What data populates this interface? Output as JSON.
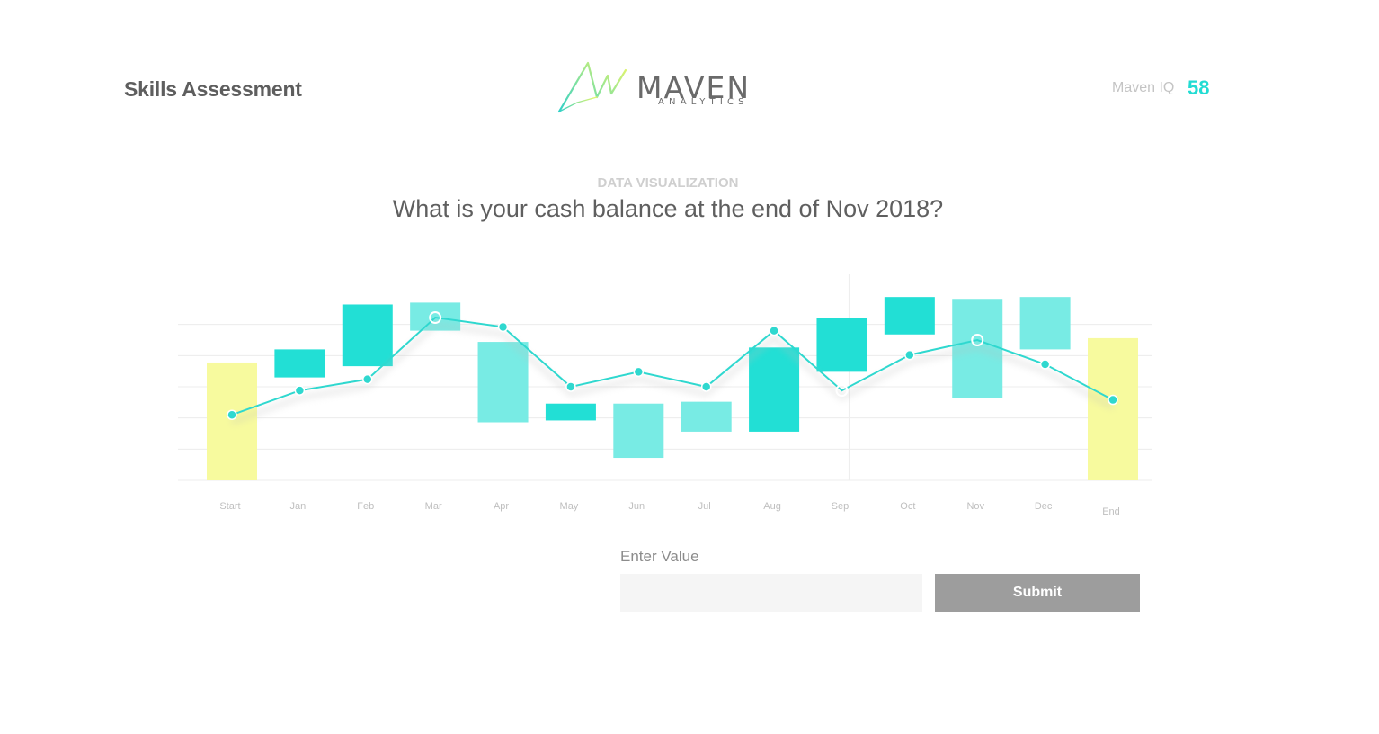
{
  "header": {
    "app_title": "Skills Assessment",
    "logo": {
      "word": "MAVEN",
      "sub": "ANALYTICS"
    },
    "iq_label": "Maven IQ",
    "iq_score": "58"
  },
  "question": {
    "category": "DATA VISUALIZATION",
    "text": "What is your cash balance at the end of Nov 2018?"
  },
  "answer": {
    "label": "Enter Value",
    "input_value": "",
    "input_placeholder": "",
    "submit_label": "Submit"
  },
  "colors": {
    "accent": "#22dcd3",
    "bar_dark": "#22dfd5",
    "bar_light": "#78ebe4",
    "total_bar": "#f7fa9e",
    "line": "#2fd8cf",
    "submit_bg": "#9d9d9d"
  },
  "chart_data": {
    "type": "bar",
    "subtype": "waterfall-with-line",
    "categories": [
      "Start",
      "Jan",
      "Feb",
      "Mar",
      "Apr",
      "May",
      "Jun",
      "Jul",
      "Aug",
      "Sep",
      "Oct",
      "Nov",
      "Dec",
      "End"
    ],
    "ylim": [
      0,
      100
    ],
    "grid": true,
    "axis_labels_shown": false,
    "bars": [
      {
        "category": "Start",
        "low": 0,
        "high": 63,
        "kind": "total"
      },
      {
        "category": "Jan",
        "low": 55,
        "high": 70,
        "kind": "dark"
      },
      {
        "category": "Feb",
        "low": 61,
        "high": 94,
        "kind": "dark"
      },
      {
        "category": "Mar",
        "low": 80,
        "high": 95,
        "kind": "light"
      },
      {
        "category": "Apr",
        "low": 31,
        "high": 74,
        "kind": "light"
      },
      {
        "category": "May",
        "low": 32,
        "high": 41,
        "kind": "dark"
      },
      {
        "category": "Jun",
        "low": 12,
        "high": 41,
        "kind": "light"
      },
      {
        "category": "Jul",
        "low": 26,
        "high": 42,
        "kind": "light"
      },
      {
        "category": "Aug",
        "low": 26,
        "high": 71,
        "kind": "dark"
      },
      {
        "category": "Sep",
        "low": 58,
        "high": 87,
        "kind": "dark"
      },
      {
        "category": "Oct",
        "low": 78,
        "high": 98,
        "kind": "dark"
      },
      {
        "category": "Nov",
        "low": 44,
        "high": 97,
        "kind": "light"
      },
      {
        "category": "Dec",
        "low": 70,
        "high": 98,
        "kind": "light"
      },
      {
        "category": "End",
        "low": 0,
        "high": 76,
        "kind": "total"
      }
    ],
    "line": {
      "values": [
        35,
        48,
        54,
        87,
        82,
        50,
        58,
        50,
        80,
        48,
        67,
        75,
        62,
        43
      ],
      "open_markers": [
        3,
        9,
        11
      ]
    }
  }
}
